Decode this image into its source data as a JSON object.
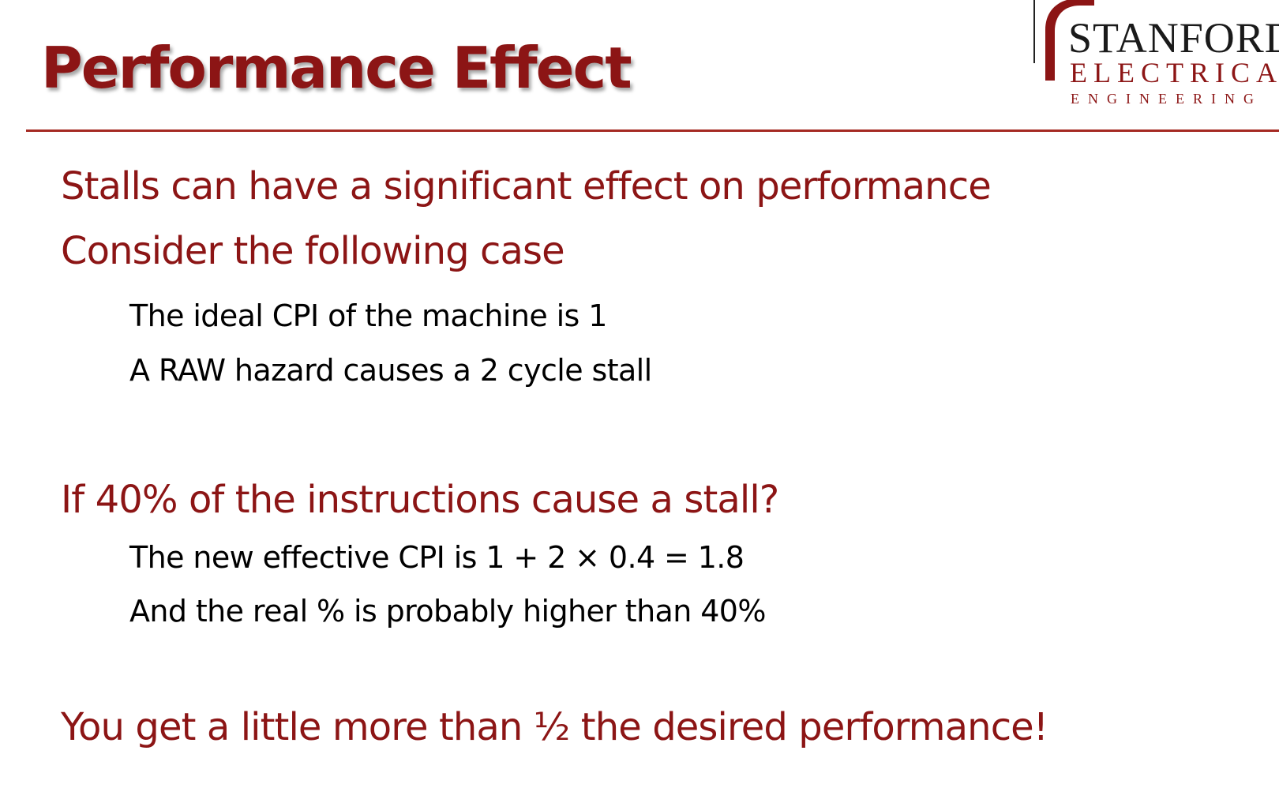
{
  "slide": {
    "title": "Performance Effect",
    "logo": {
      "line1": "STANFORD",
      "line2": "ELECTRICAL",
      "line3": "ENGINEERING"
    },
    "points": [
      {
        "level": 1,
        "text": "Stalls can have a significant effect on performance"
      },
      {
        "level": 1,
        "text": "Consider the following case"
      },
      {
        "level": 2,
        "text": "The ideal CPI of the machine is 1"
      },
      {
        "level": 2,
        "text": "A RAW hazard causes a 2 cycle stall"
      },
      {
        "level": 1,
        "text": "If 40% of the instructions cause a stall?"
      },
      {
        "level": 2,
        "text": "The new effective CPI is 1 + 2 × 0.4 = 1.8"
      },
      {
        "level": 2,
        "text": "And the real % is probably higher than 40%"
      },
      {
        "level": 1,
        "text": "You get a little more than ½ the desired performance!"
      }
    ]
  },
  "colors": {
    "accent": "#8c1515",
    "rule": "#a52a23",
    "body_text": "#000000"
  }
}
